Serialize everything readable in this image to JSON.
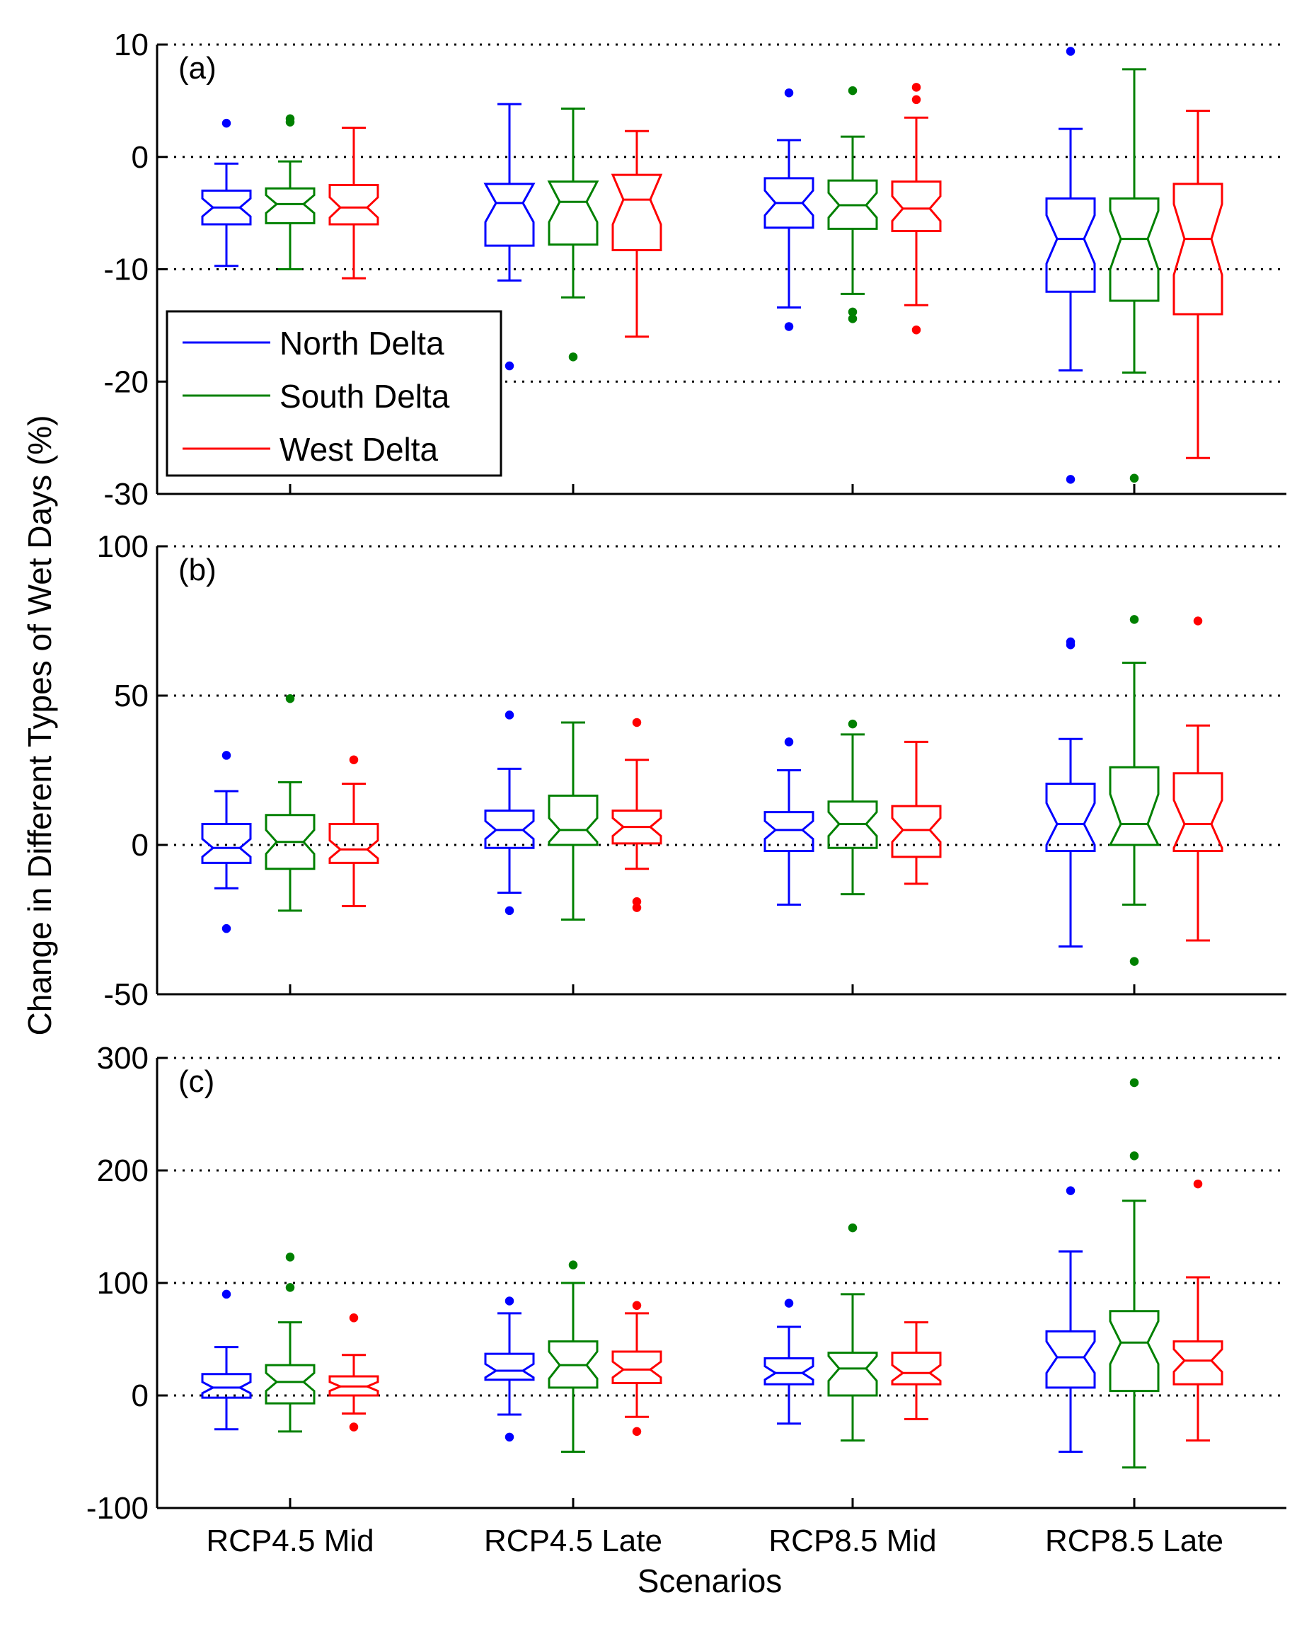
{
  "chart_data": {
    "type": "boxplot",
    "xlabel": "Scenarios",
    "ylabel": "Change in Different Types of Wet Days (%)",
    "categories": [
      "RCP4.5 Mid",
      "RCP4.5 Late",
      "RCP8.5 Mid",
      "RCP8.5 Late"
    ],
    "legend": {
      "placement": "left, inside panel (a)",
      "entries": [
        {
          "name": "North Delta",
          "color": "#0000ff"
        },
        {
          "name": "South Delta",
          "color": "#008000"
        },
        {
          "name": "West Delta",
          "color": "#ff0000"
        }
      ]
    },
    "panels": [
      {
        "label": "(a)",
        "ylim": [
          -30,
          10
        ],
        "yticks": [
          10,
          0,
          -10,
          -20,
          -30
        ],
        "gridlines": [
          10,
          0,
          -10,
          -20
        ],
        "boxes": [
          [
            {
              "q1": -6,
              "median": -4.5,
              "q3": -3,
              "whisker_low": -9.7,
              "whisker_high": -0.6,
              "notch_low": -5.3,
              "notch_high": -3.7,
              "outliers": [
                3
              ]
            },
            {
              "q1": -5.9,
              "median": -4.2,
              "q3": -2.8,
              "whisker_low": -10,
              "whisker_high": -0.4,
              "notch_low": -5,
              "notch_high": -3.4,
              "outliers": [
                3.1,
                3.4
              ]
            },
            {
              "q1": -6,
              "median": -4.5,
              "q3": -2.5,
              "whisker_low": -10.8,
              "whisker_high": 2.6,
              "notch_low": -5.4,
              "notch_high": -3.6,
              "outliers": []
            }
          ],
          [
            {
              "q1": -7.9,
              "median": -4.1,
              "q3": -2.4,
              "whisker_low": -11,
              "whisker_high": 4.7,
              "notch_low": -5.8,
              "notch_high": -2.4,
              "outliers": [
                -18.6
              ]
            },
            {
              "q1": -7.8,
              "median": -4,
              "q3": -2.2,
              "whisker_low": -12.5,
              "whisker_high": 4.3,
              "notch_low": -5.8,
              "notch_high": -2.2,
              "outliers": [
                -17.8
              ]
            },
            {
              "q1": -8.3,
              "median": -3.8,
              "q3": -1.6,
              "whisker_low": -16,
              "whisker_high": 2.3,
              "notch_low": -6,
              "notch_high": -1.6,
              "outliers": []
            }
          ],
          [
            {
              "q1": -6.3,
              "median": -4.1,
              "q3": -1.9,
              "whisker_low": -13.4,
              "whisker_high": 1.5,
              "notch_low": -5.2,
              "notch_high": -3,
              "outliers": [
                5.7,
                -15.1
              ]
            },
            {
              "q1": -6.4,
              "median": -4.3,
              "q3": -2.1,
              "whisker_low": -12.2,
              "whisker_high": 1.8,
              "notch_low": -5.4,
              "notch_high": -3.2,
              "outliers": [
                5.9,
                -13.8,
                -14.4
              ]
            },
            {
              "q1": -6.6,
              "median": -4.6,
              "q3": -2.2,
              "whisker_low": -13.2,
              "whisker_high": 3.5,
              "notch_low": -5.7,
              "notch_high": -3.5,
              "outliers": [
                6.2,
                5.1,
                -15.4
              ]
            }
          ],
          [
            {
              "q1": -12,
              "median": -7.3,
              "q3": -3.7,
              "whisker_low": -19,
              "whisker_high": 2.5,
              "notch_low": -9.5,
              "notch_high": -5.2,
              "outliers": [
                9.4,
                -28.7
              ]
            },
            {
              "q1": -12.8,
              "median": -7.3,
              "q3": -3.7,
              "whisker_low": -19.2,
              "whisker_high": 7.8,
              "notch_low": -10,
              "notch_high": -4.8,
              "outliers": [
                -28.6
              ]
            },
            {
              "q1": -14,
              "median": -7.3,
              "q3": -2.4,
              "whisker_low": -26.8,
              "whisker_high": 4.1,
              "notch_low": -10.5,
              "notch_high": -4.2,
              "outliers": []
            }
          ]
        ]
      },
      {
        "label": "(b)",
        "ylim": [
          -50,
          100
        ],
        "yticks": [
          100,
          50,
          0,
          -50
        ],
        "gridlines": [
          100,
          50,
          0
        ],
        "boxes": [
          [
            {
              "q1": -6,
              "median": -1,
              "q3": 7,
              "whisker_low": -14.5,
              "whisker_high": 18,
              "notch_low": -4,
              "notch_high": 2,
              "outliers": [
                30,
                -28
              ]
            },
            {
              "q1": -8,
              "median": 1,
              "q3": 10,
              "whisker_low": -22,
              "whisker_high": 21,
              "notch_low": -3,
              "notch_high": 5,
              "outliers": [
                49
              ]
            },
            {
              "q1": -6,
              "median": -1.5,
              "q3": 7,
              "whisker_low": -20.5,
              "whisker_high": 20.5,
              "notch_low": -4.5,
              "notch_high": 1.5,
              "outliers": [
                28.5
              ]
            }
          ],
          [
            {
              "q1": -1,
              "median": 5,
              "q3": 11.5,
              "whisker_low": -16,
              "whisker_high": 25.5,
              "notch_low": 2,
              "notch_high": 8,
              "outliers": [
                43.5,
                -22
              ]
            },
            {
              "q1": 0,
              "median": 5,
              "q3": 16.5,
              "whisker_low": -25,
              "whisker_high": 41,
              "notch_low": 1,
              "notch_high": 9,
              "outliers": []
            },
            {
              "q1": 0.5,
              "median": 6,
              "q3": 11.5,
              "whisker_low": -8,
              "whisker_high": 28.5,
              "notch_low": 3,
              "notch_high": 9,
              "outliers": [
                41,
                -19,
                -21
              ]
            }
          ],
          [
            {
              "q1": -2,
              "median": 5,
              "q3": 11,
              "whisker_low": -20,
              "whisker_high": 25,
              "notch_low": 2,
              "notch_high": 8,
              "outliers": [
                34.5
              ]
            },
            {
              "q1": -1,
              "median": 7,
              "q3": 14.5,
              "whisker_low": -16.5,
              "whisker_high": 37,
              "notch_low": 3,
              "notch_high": 11,
              "outliers": [
                40.5
              ]
            },
            {
              "q1": -4,
              "median": 5,
              "q3": 13,
              "whisker_low": -13,
              "whisker_high": 34.5,
              "notch_low": 1,
              "notch_high": 9,
              "outliers": []
            }
          ],
          [
            {
              "q1": -2,
              "median": 7,
              "q3": 20.5,
              "whisker_low": -34,
              "whisker_high": 35.5,
              "notch_low": 0,
              "notch_high": 14,
              "outliers": [
                67,
                68
              ]
            },
            {
              "q1": 0,
              "median": 7,
              "q3": 26,
              "whisker_low": -20,
              "whisker_high": 61,
              "notch_low": 0,
              "notch_high": 17,
              "outliers": [
                75.5,
                -39
              ]
            },
            {
              "q1": -2,
              "median": 7,
              "q3": 24,
              "whisker_low": -32,
              "whisker_high": 40,
              "notch_low": -1,
              "notch_high": 15,
              "outliers": [
                75
              ]
            }
          ]
        ]
      },
      {
        "label": "(c)",
        "ylim": [
          -100,
          300
        ],
        "yticks": [
          300,
          200,
          100,
          0,
          -100
        ],
        "gridlines": [
          300,
          200,
          100,
          0
        ],
        "boxes": [
          [
            {
              "q1": -2,
              "median": 7,
              "q3": 19,
              "whisker_low": -30,
              "whisker_high": 43,
              "notch_low": 2,
              "notch_high": 12,
              "outliers": [
                90
              ]
            },
            {
              "q1": -7,
              "median": 12,
              "q3": 27,
              "whisker_low": -32,
              "whisker_high": 65,
              "notch_low": 4,
              "notch_high": 20,
              "outliers": [
                123,
                96
              ]
            },
            {
              "q1": 0,
              "median": 8,
              "q3": 17,
              "whisker_low": -16,
              "whisker_high": 36,
              "notch_low": 4,
              "notch_high": 12,
              "outliers": [
                69,
                -28
              ]
            }
          ],
          [
            {
              "q1": 14,
              "median": 22,
              "q3": 37,
              "whisker_low": -17,
              "whisker_high": 73,
              "notch_low": 16,
              "notch_high": 28,
              "outliers": [
                84,
                -37
              ]
            },
            {
              "q1": 7,
              "median": 27,
              "q3": 48,
              "whisker_low": -50,
              "whisker_high": 100,
              "notch_low": 15,
              "notch_high": 39,
              "outliers": [
                116
              ]
            },
            {
              "q1": 11,
              "median": 23,
              "q3": 39,
              "whisker_low": -19,
              "whisker_high": 73,
              "notch_low": 16,
              "notch_high": 30,
              "outliers": [
                80,
                -32
              ]
            }
          ],
          [
            {
              "q1": 10,
              "median": 20,
              "q3": 33,
              "whisker_low": -25,
              "whisker_high": 61,
              "notch_low": 14,
              "notch_high": 26,
              "outliers": [
                82
              ]
            },
            {
              "q1": 0,
              "median": 24,
              "q3": 38,
              "whisker_low": -40,
              "whisker_high": 90,
              "notch_low": 13,
              "notch_high": 35,
              "outliers": [
                149
              ]
            },
            {
              "q1": 10,
              "median": 20,
              "q3": 38,
              "whisker_low": -21,
              "whisker_high": 65,
              "notch_low": 13,
              "notch_high": 27,
              "outliers": []
            }
          ],
          [
            {
              "q1": 7,
              "median": 34,
              "q3": 57,
              "whisker_low": -50,
              "whisker_high": 128,
              "notch_low": 20,
              "notch_high": 48,
              "outliers": [
                182
              ]
            },
            {
              "q1": 4,
              "median": 47,
              "q3": 75,
              "whisker_low": -64,
              "whisker_high": 173,
              "notch_low": 28,
              "notch_high": 66,
              "outliers": [
                278,
                213
              ]
            },
            {
              "q1": 10,
              "median": 31,
              "q3": 48,
              "whisker_low": -40,
              "whisker_high": 105,
              "notch_low": 21,
              "notch_high": 41,
              "outliers": [
                188
              ]
            }
          ]
        ]
      }
    ]
  }
}
